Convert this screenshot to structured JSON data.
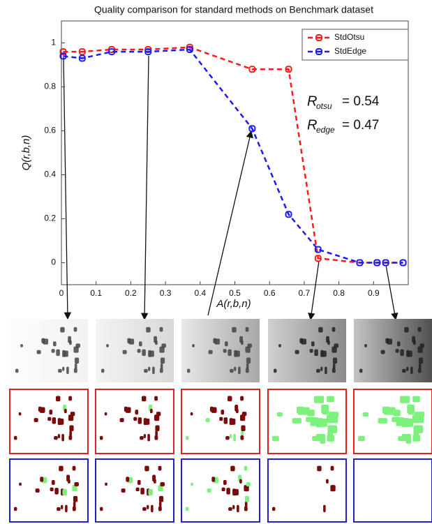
{
  "chart_data": {
    "type": "line",
    "title": "Quality comparison for standard methods on Benchmark dataset",
    "x_label": "A(r,b,n)",
    "y_label": "Q(r,b,n)",
    "x": [
      0.005,
      0.06,
      0.145,
      0.25,
      0.37,
      0.55,
      0.655,
      0.74,
      0.86,
      0.91,
      0.935,
      0.985
    ],
    "series": [
      {
        "name": "StdOtsu",
        "color": "#ff1a1a",
        "values": [
          0.96,
          0.96,
          0.97,
          0.97,
          0.98,
          0.88,
          0.88,
          0.02,
          0,
          0,
          0,
          0
        ]
      },
      {
        "name": "StdEdge",
        "color": "#1a1aff",
        "values": [
          0.94,
          0.93,
          0.96,
          0.96,
          0.97,
          0.61,
          0.22,
          0.06,
          0,
          0,
          0,
          0
        ]
      }
    ],
    "annotations": [
      {
        "symbol": "R",
        "subscript": "otsu",
        "text": "= 0.54"
      },
      {
        "symbol": "R",
        "subscript": "edge",
        "text": "= 0.47"
      }
    ],
    "xlim": [
      0,
      1
    ],
    "xticks": [
      0,
      0.1,
      0.2,
      0.3,
      0.4,
      0.5,
      0.6,
      0.7,
      0.8,
      0.9
    ],
    "ylim": [
      -0.1,
      1.1
    ],
    "yticks": [
      0,
      0.2,
      0.4,
      0.6,
      0.8,
      1
    ],
    "grid": false,
    "legend_position": "upper-right"
  }
}
